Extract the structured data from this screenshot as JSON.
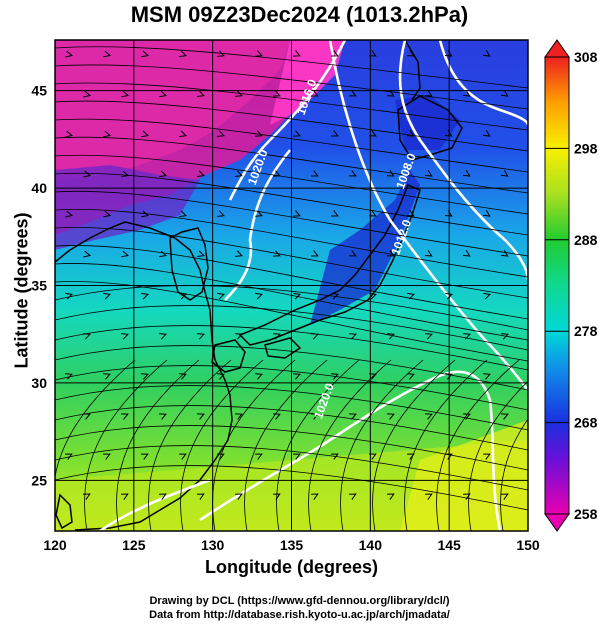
{
  "title": "MSM 09Z23Dec2024 (1013.2hPa)",
  "credits": {
    "line1": "Drawing by DCL (https://www.gfd-dennou.org/library/dcl/)",
    "line2": "Data from http://database.rish.kyoto-u.ac.jp/arch/jmadata/"
  },
  "colors": {
    "cold": "#d400a0",
    "blue": "#1a3fe0",
    "cyan": "#00d8d8",
    "green": "#22cc33",
    "yellow": "#ffff00",
    "orange": "#ff9900",
    "red": "#ee2020",
    "contour": "#ffffff",
    "coast": "#000000"
  },
  "chart_data": {
    "type": "map",
    "xlabel": "Longitude (degrees)",
    "ylabel": "Latitude  (degrees)",
    "xlim": [
      120,
      150
    ],
    "ylim": [
      22.4,
      47.6
    ],
    "xticks": [
      120,
      125,
      130,
      135,
      140,
      145,
      150
    ],
    "yticks": [
      25,
      30,
      35,
      40,
      45
    ],
    "grid": true,
    "colorbar": {
      "range": [
        258,
        308
      ],
      "ticks": [
        258,
        268,
        278,
        288,
        298,
        308
      ],
      "placement": "right"
    },
    "contours": [
      {
        "label": "1016.0",
        "lon": 136.2,
        "lat": 44.6
      },
      {
        "label": "1020.0",
        "lon": 133.1,
        "lat": 41.0
      },
      {
        "label": "1008.0",
        "lon": 142.5,
        "lat": 40.8
      },
      {
        "label": "1012.0",
        "lon": 142.2,
        "lat": 37.4
      },
      {
        "label": "1020.0",
        "lon": 137.3,
        "lat": 29.0
      }
    ]
  }
}
